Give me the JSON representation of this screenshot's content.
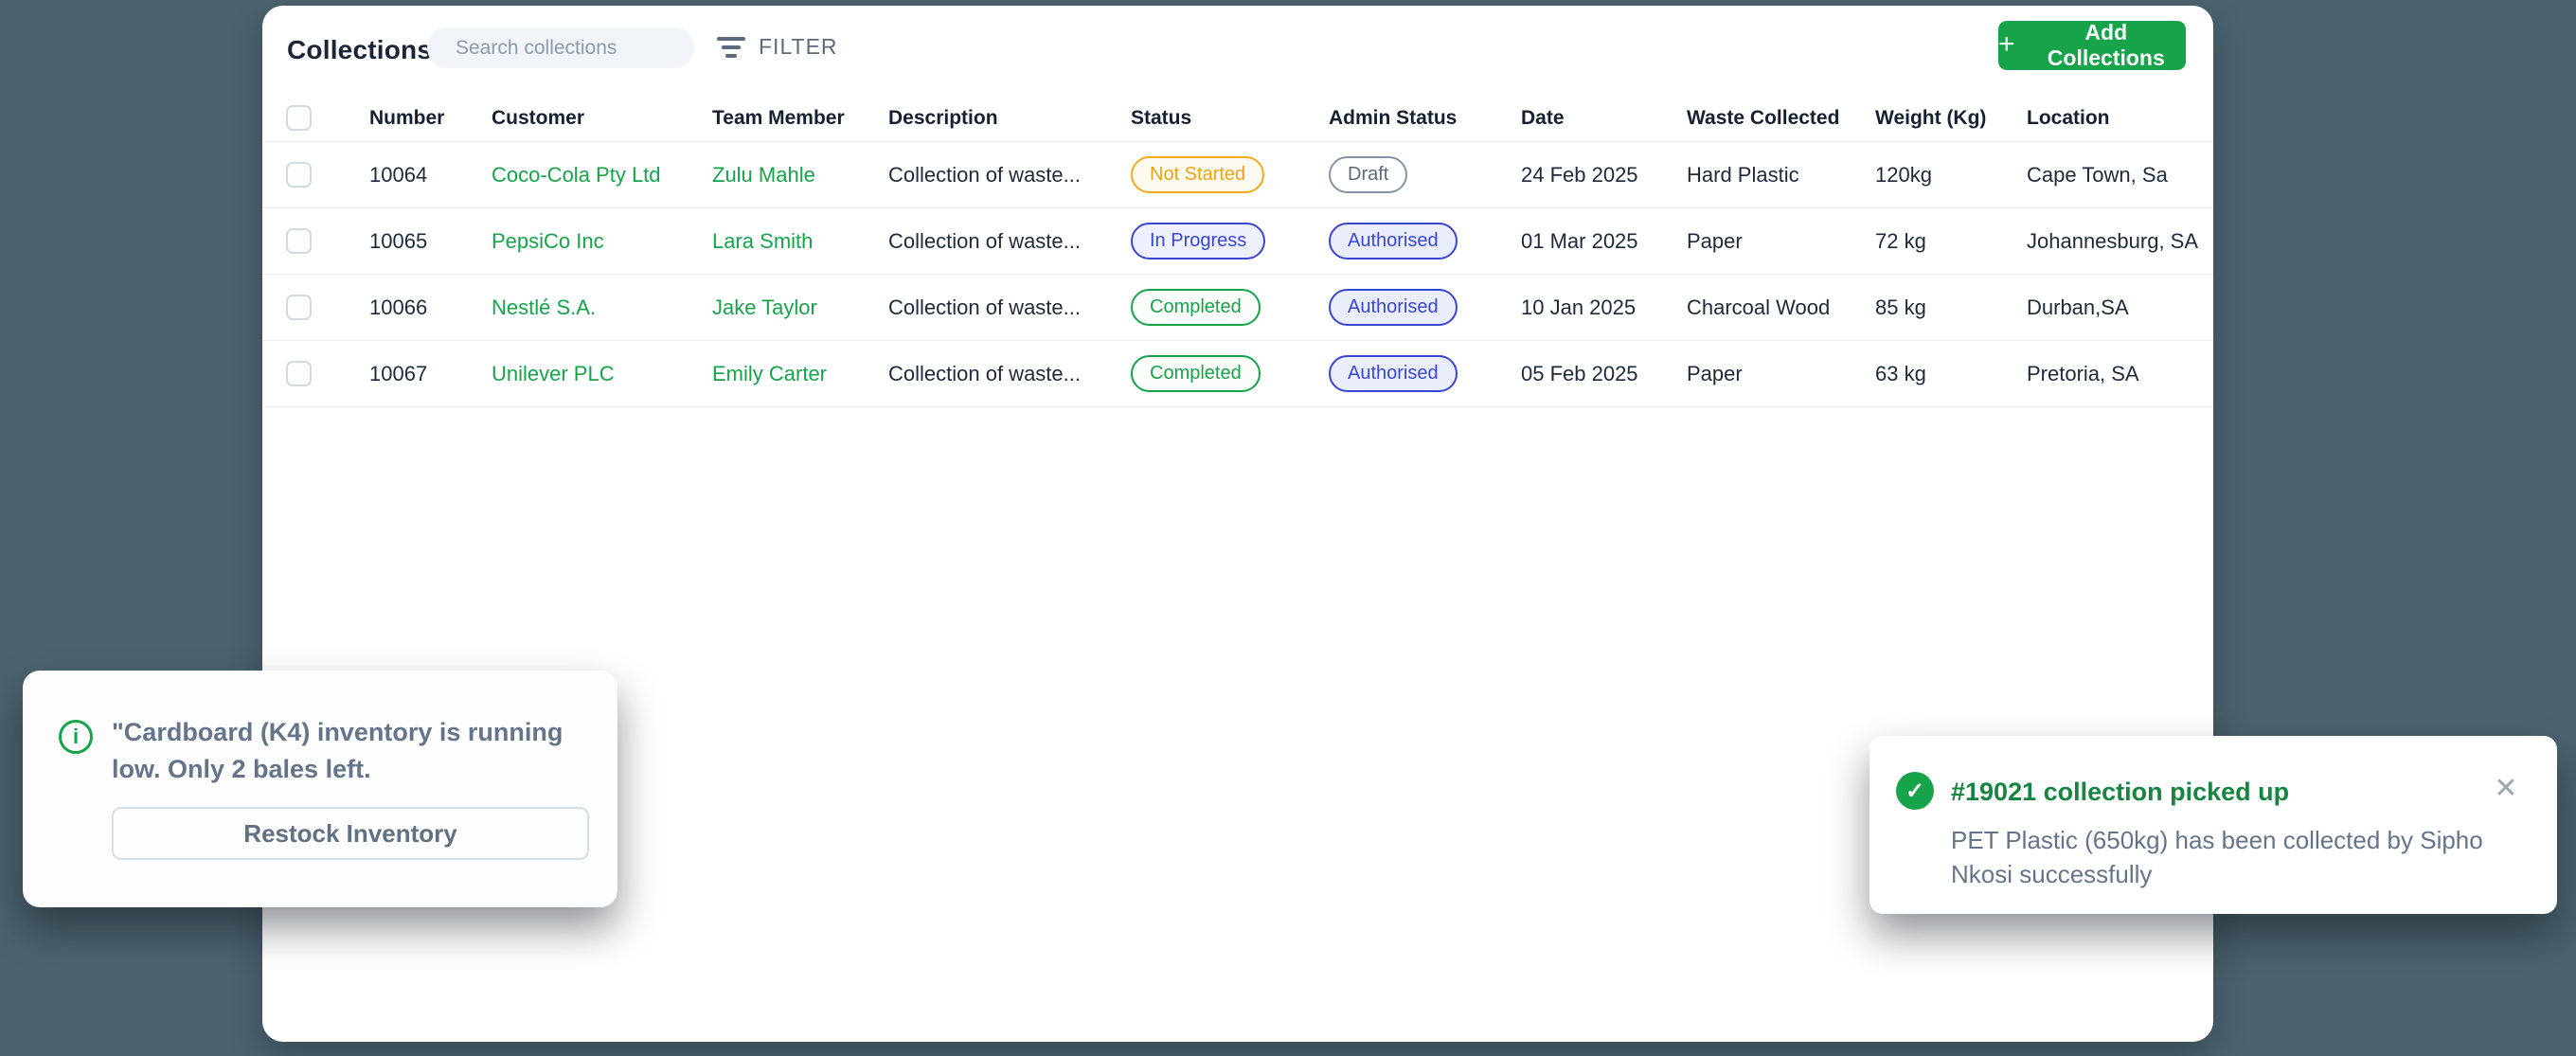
{
  "colors": {
    "background": "#4c636e",
    "accent_green": "#16a34a",
    "badge_blue": "#3a46d1",
    "badge_amber": "#f0ab1e",
    "muted_slate": "#64748b"
  },
  "header": {
    "title": "Collections",
    "search_placeholder": "Search collections",
    "filter_label": "FILTER",
    "add_button_label": "Add Collections",
    "add_button_plus": "+"
  },
  "table": {
    "columns": [
      "Number",
      "Customer",
      "Team Member",
      "Description",
      "Status",
      "Admin Status",
      "Date",
      "Waste Collected",
      "Weight (Kg)",
      "Location"
    ],
    "rows": [
      {
        "number": "10064",
        "customer": "Coco-Cola Pty Ltd",
        "team_member": "Zulu Mahle",
        "description": "Collection of waste...",
        "status": "Not Started",
        "admin_status": "Draft",
        "date": "24 Feb 2025",
        "waste": "Hard Plastic",
        "weight": "120kg",
        "location": "Cape Town, Sa"
      },
      {
        "number": "10065",
        "customer": "PepsiCo Inc",
        "team_member": "Lara Smith",
        "description": "Collection of waste...",
        "status": "In Progress",
        "admin_status": "Authorised",
        "date": "01 Mar 2025",
        "waste": "Paper",
        "weight": "72 kg",
        "location": "Johannesburg, SA"
      },
      {
        "number": "10066",
        "customer": "Nestlé S.A.",
        "team_member": "Jake Taylor",
        "description": "Collection of waste...",
        "status": "Completed",
        "admin_status": "Authorised",
        "date": "10 Jan 2025",
        "waste": "Charcoal Wood",
        "weight": "85 kg",
        "location": "Durban,SA"
      },
      {
        "number": "10067",
        "customer": "Unilever PLC",
        "team_member": "Emily Carter",
        "description": "Collection of waste...",
        "status": "Completed",
        "admin_status": "Authorised",
        "date": "05 Feb 2025",
        "waste": "Paper",
        "weight": "63 kg",
        "location": "Pretoria, SA"
      }
    ]
  },
  "toasts": {
    "inventory": {
      "icon": "info-icon",
      "icon_glyph": "i",
      "message": "\"Cardboard (K4) inventory is running low. Only 2 bales left.",
      "button_label": "Restock Inventory"
    },
    "pickup": {
      "icon": "check-icon",
      "icon_glyph": "✓",
      "title": "#19021 collection picked up",
      "body": "PET Plastic (650kg)  has been collected by Sipho Nkosi successfully",
      "close_glyph": "✕"
    }
  }
}
